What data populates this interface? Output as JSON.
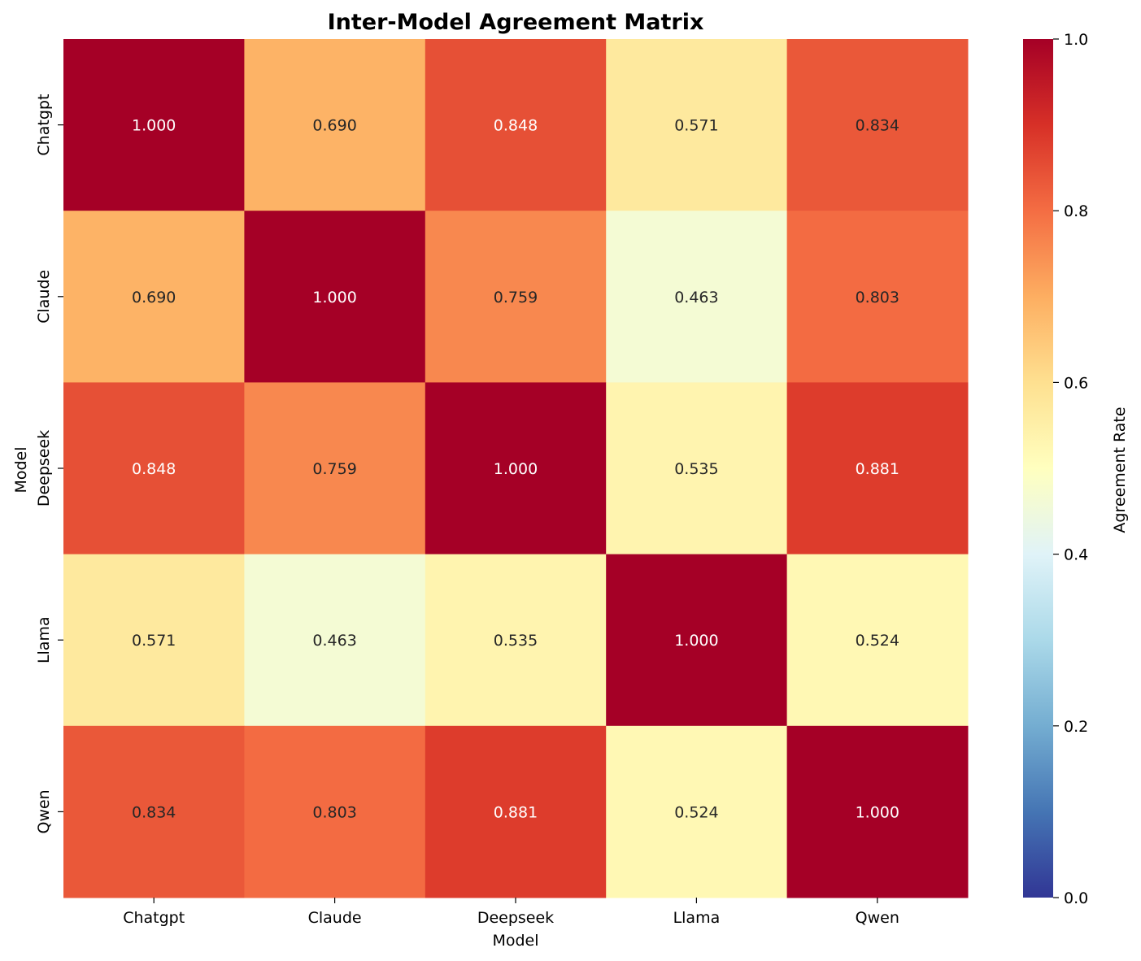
{
  "chart_data": {
    "type": "heatmap",
    "title": "Inter-Model Agreement Matrix",
    "xlabel": "Model",
    "ylabel": "Model",
    "x_categories": [
      "Chatgpt",
      "Claude",
      "Deepseek",
      "Llama",
      "Qwen"
    ],
    "y_categories": [
      "Chatgpt",
      "Claude",
      "Deepseek",
      "Llama",
      "Qwen"
    ],
    "values": [
      [
        1.0,
        0.69,
        0.848,
        0.571,
        0.834
      ],
      [
        0.69,
        1.0,
        0.759,
        0.463,
        0.803
      ],
      [
        0.848,
        0.759,
        1.0,
        0.535,
        0.881
      ],
      [
        0.571,
        0.463,
        0.535,
        1.0,
        0.524
      ],
      [
        0.834,
        0.803,
        0.881,
        0.524,
        1.0
      ]
    ],
    "cell_labels": [
      [
        "1.000",
        "0.690",
        "0.848",
        "0.571",
        "0.834"
      ],
      [
        "0.690",
        "1.000",
        "0.759",
        "0.463",
        "0.803"
      ],
      [
        "0.848",
        "0.759",
        "1.000",
        "0.535",
        "0.881"
      ],
      [
        "0.571",
        "0.463",
        "0.535",
        "1.000",
        "0.524"
      ],
      [
        "0.834",
        "0.803",
        "0.881",
        "0.524",
        "1.000"
      ]
    ],
    "colorbar": {
      "label": "Agreement Rate",
      "range": [
        0,
        1
      ],
      "ticks": [
        0.0,
        0.2,
        0.4,
        0.6,
        0.8,
        1.0
      ],
      "tick_labels": [
        "0.0",
        "0.2",
        "0.4",
        "0.6",
        "0.8",
        "1.0"
      ],
      "colormap": "RdYlBu_r"
    },
    "grid": false,
    "legend": "colorbar-right"
  },
  "colors": {
    "colormap_stops": [
      "#313695",
      "#4575b4",
      "#74add1",
      "#abd9e9",
      "#e0f3f8",
      "#ffffbf",
      "#fee090",
      "#fdae61",
      "#f46d43",
      "#d73027",
      "#a50026"
    ],
    "text_dark": "#262626",
    "text_light": "#ffffff"
  }
}
